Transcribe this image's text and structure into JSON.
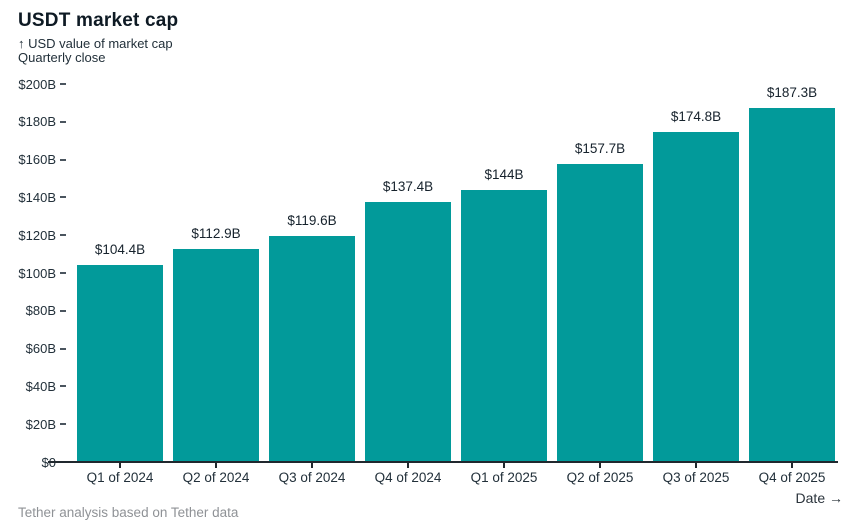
{
  "header": {
    "title": "USDT market cap",
    "subtitle": "↑ USD value of market cap\nQuarterly close"
  },
  "footer": {
    "source": "Tether analysis based on Tether data",
    "x_axis_title": "Date →"
  },
  "colors": {
    "bar": "#029a9a",
    "axis": "#20282e",
    "text_dark": "#16222c",
    "text_muted": "#8f9296"
  },
  "chart_data": {
    "type": "bar",
    "title": "USDT market cap",
    "subtitle": "↑ USD value of market cap / Quarterly close",
    "xlabel": "Date",
    "ylabel": "USD value of market cap",
    "categories": [
      "Q1 of 2024",
      "Q2 of 2024",
      "Q3 of 2024",
      "Q4 of 2024",
      "Q1 of 2025",
      "Q2 of 2025",
      "Q3 of 2025",
      "Q4 of 2025"
    ],
    "values": [
      104.4,
      112.9,
      119.6,
      137.4,
      144,
      157.7,
      174.8,
      187.3
    ],
    "bar_labels": [
      "$104.4B",
      "$112.9B",
      "$119.6B",
      "$137.4B",
      "$144B",
      "$157.7B",
      "$174.8B",
      "$187.3B"
    ],
    "unit": "billion USD",
    "ylim": [
      0,
      200
    ],
    "ytick_step": 20,
    "ytick_labels": [
      "$0",
      "$20B",
      "$40B",
      "$60B",
      "$80B",
      "$100B",
      "$120B",
      "$140B",
      "$160B",
      "$180B",
      "$200B"
    ],
    "grid": false,
    "legend": false
  }
}
